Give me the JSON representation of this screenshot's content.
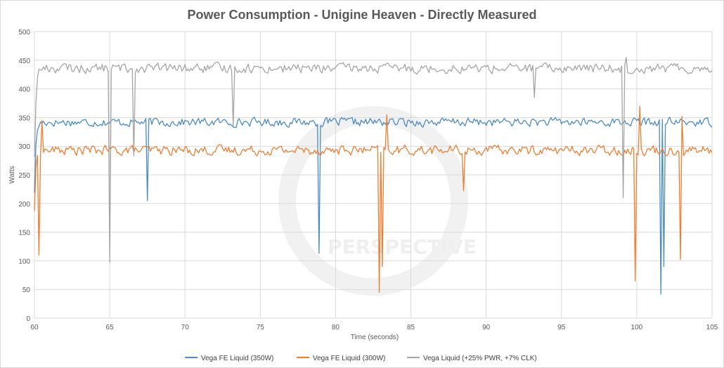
{
  "chart_data": {
    "type": "line",
    "title": "Power Consumption - Unigine Heaven - Directly Measured",
    "xlabel": "Time (seconds)",
    "ylabel": "Watts",
    "xlim": [
      60,
      105
    ],
    "ylim": [
      0,
      500
    ],
    "x_ticks": [
      60,
      65,
      70,
      75,
      80,
      85,
      90,
      95,
      100,
      105
    ],
    "y_ticks": [
      0,
      50,
      100,
      150,
      200,
      250,
      300,
      350,
      400,
      450,
      500
    ],
    "grid": "horizontal and vertical major gridlines",
    "legend_position": "bottom",
    "sample_step_seconds": 0.1,
    "series": [
      {
        "name": "Vega FE Liquid (350W)",
        "color": "#4a8bc4",
        "baseline": 342,
        "noise": 8,
        "events": [
          {
            "x": 67.5,
            "value": 205
          },
          {
            "x": 78.9,
            "value": 113
          },
          {
            "x": 101.6,
            "value": 42
          },
          {
            "x": 101.8,
            "value": 90
          }
        ]
      },
      {
        "name": "Vega FE Liquid (300W)",
        "color": "#ed7d31",
        "baseline": 293,
        "noise": 9,
        "events": [
          {
            "x": 60.3,
            "value": 110
          },
          {
            "x": 60.5,
            "value": 345
          },
          {
            "x": 82.9,
            "value": 45
          },
          {
            "x": 83.1,
            "value": 90
          },
          {
            "x": 83.4,
            "value": 355
          },
          {
            "x": 88.5,
            "value": 222
          },
          {
            "x": 99.9,
            "value": 65
          },
          {
            "x": 100.2,
            "value": 370
          },
          {
            "x": 102.9,
            "value": 102
          },
          {
            "x": 103.0,
            "value": 352
          }
        ]
      },
      {
        "name": "Vega Liquid (+25% PWR, +7% CLK)",
        "color": "#a5a5a5",
        "baseline": 436,
        "noise": 9,
        "events": [
          {
            "x": 65.0,
            "value": 97
          },
          {
            "x": 66.6,
            "value": 283
          },
          {
            "x": 73.2,
            "value": 335
          },
          {
            "x": 93.2,
            "value": 385
          },
          {
            "x": 99.1,
            "value": 210
          },
          {
            "x": 99.3,
            "value": 455
          }
        ]
      }
    ]
  }
}
